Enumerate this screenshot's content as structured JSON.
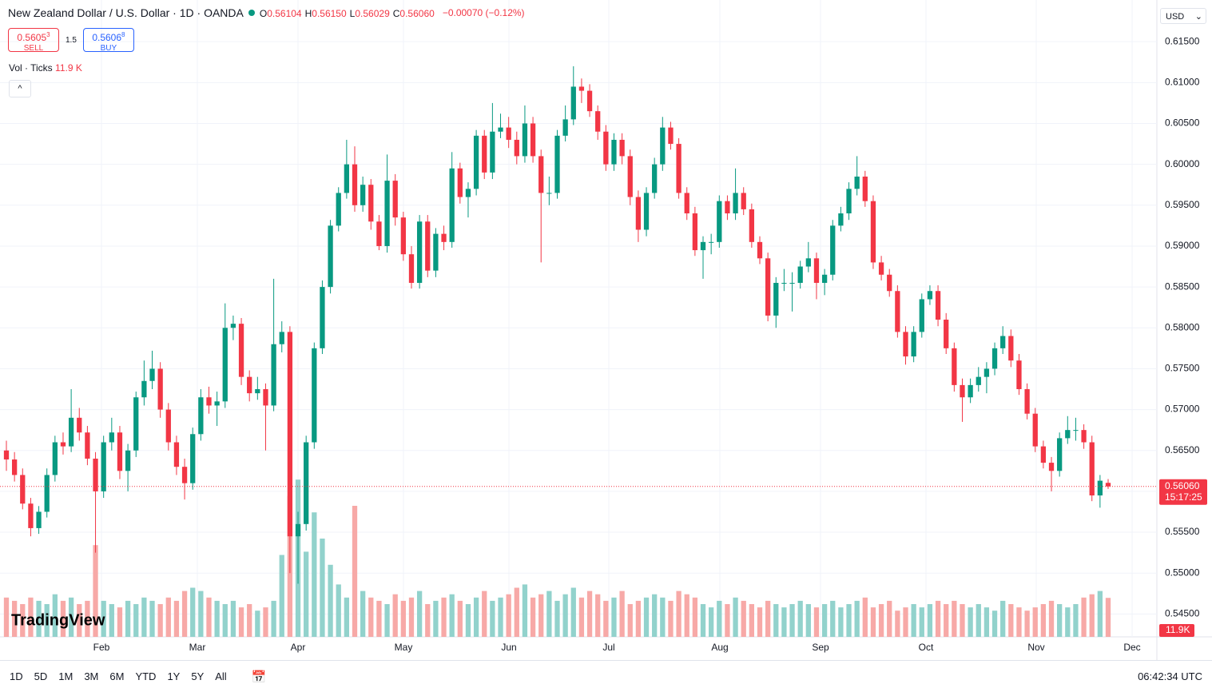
{
  "header": {
    "symbol": "New Zealand Dollar / U.S. Dollar · 1D · OANDA",
    "ohlc": [
      {
        "key": "O",
        "text": "0.56104"
      },
      {
        "key": "H",
        "text": "0.56150"
      },
      {
        "key": "L",
        "text": "0.56029"
      },
      {
        "key": "C",
        "text": "0.56060"
      }
    ],
    "change": "−0.00070 (−0.12%)",
    "currency": "USD"
  },
  "trade": {
    "sell_price": "0.5605",
    "sell_pip": "3",
    "sell": "SELL",
    "spread": "1.5",
    "buy_price": "0.5606",
    "buy_pip": "8",
    "buy": "BUY"
  },
  "volume_legend": {
    "name": "Vol · Ticks",
    "value": "11.9 K",
    "tag": "11.9K"
  },
  "logo": "TradingView",
  "toolbar": {
    "ranges": [
      "1D",
      "5D",
      "1M",
      "3M",
      "6M",
      "YTD",
      "1Y",
      "5Y",
      "All"
    ],
    "clock": "06:42:34 UTC"
  },
  "chart_data": {
    "type": "candlestick",
    "up_color": "#089981",
    "down_color": "#f23645",
    "up_volume_color": "#92d2cc",
    "down_volume_color": "#f7a9a7",
    "grid": true,
    "ylim": [
      0.5422,
      0.6201
    ],
    "yticks": [
      {
        "value": 0.545,
        "label": "0.54500"
      },
      {
        "value": 0.55,
        "label": "0.55000"
      },
      {
        "value": 0.555,
        "label": "0.55500"
      },
      {
        "value": 0.56,
        "label": "0.56000"
      },
      {
        "value": 0.565,
        "label": "0.56500"
      },
      {
        "value": 0.57,
        "label": "0.57000"
      },
      {
        "value": 0.575,
        "label": "0.57500"
      },
      {
        "value": 0.58,
        "label": "0.58000"
      },
      {
        "value": 0.585,
        "label": "0.58500"
      },
      {
        "value": 0.59,
        "label": "0.59000"
      },
      {
        "value": 0.595,
        "label": "0.59500"
      },
      {
        "value": 0.6,
        "label": "0.60000"
      },
      {
        "value": 0.605,
        "label": "0.60500"
      },
      {
        "value": 0.61,
        "label": "0.61000"
      },
      {
        "value": 0.615,
        "label": "0.61500"
      }
    ],
    "time_labels": [
      "Feb",
      "Mar",
      "Apr",
      "May",
      "Jun",
      "Jul",
      "Aug",
      "Sep",
      "Oct",
      "Nov",
      "Dec"
    ],
    "last_price": {
      "value": 0.5606,
      "label": "0.56060"
    },
    "countdown": "15:17:25",
    "ohlc": [
      [
        0.565,
        0.5662,
        0.5625,
        0.5639
      ],
      [
        0.5639,
        0.5648,
        0.5612,
        0.562
      ],
      [
        0.562,
        0.5628,
        0.5578,
        0.5585
      ],
      [
        0.5585,
        0.5592,
        0.5545,
        0.5555
      ],
      [
        0.5555,
        0.5582,
        0.5548,
        0.5575
      ],
      [
        0.5575,
        0.5628,
        0.5568,
        0.562
      ],
      [
        0.562,
        0.5668,
        0.5612,
        0.566
      ],
      [
        0.566,
        0.5672,
        0.5645,
        0.5655
      ],
      [
        0.5655,
        0.5725,
        0.5648,
        0.569
      ],
      [
        0.569,
        0.5702,
        0.5662,
        0.5672
      ],
      [
        0.5672,
        0.568,
        0.5632,
        0.564
      ],
      [
        0.564,
        0.5648,
        0.5525,
        0.56
      ],
      [
        0.56,
        0.5668,
        0.5592,
        0.566
      ],
      [
        0.566,
        0.569,
        0.565,
        0.5672
      ],
      [
        0.5672,
        0.568,
        0.5615,
        0.5625
      ],
      [
        0.5625,
        0.5658,
        0.56,
        0.565
      ],
      [
        0.565,
        0.5722,
        0.5642,
        0.5715
      ],
      [
        0.5715,
        0.576,
        0.5705,
        0.5735
      ],
      [
        0.5735,
        0.5772,
        0.5725,
        0.575
      ],
      [
        0.575,
        0.5758,
        0.569,
        0.57
      ],
      [
        0.57,
        0.5708,
        0.565,
        0.566
      ],
      [
        0.566,
        0.5668,
        0.562,
        0.563
      ],
      [
        0.563,
        0.564,
        0.559,
        0.561
      ],
      [
        0.561,
        0.5678,
        0.5602,
        0.567
      ],
      [
        0.567,
        0.5725,
        0.5662,
        0.5715
      ],
      [
        0.5715,
        0.5728,
        0.5695,
        0.5705
      ],
      [
        0.5705,
        0.5722,
        0.568,
        0.571
      ],
      [
        0.571,
        0.583,
        0.5702,
        0.58
      ],
      [
        0.58,
        0.5815,
        0.5785,
        0.5805
      ],
      [
        0.5805,
        0.5812,
        0.573,
        0.574
      ],
      [
        0.574,
        0.5748,
        0.571,
        0.572
      ],
      [
        0.572,
        0.574,
        0.5712,
        0.5725
      ],
      [
        0.5725,
        0.5732,
        0.565,
        0.5705
      ],
      [
        0.5705,
        0.586,
        0.5698,
        0.578
      ],
      [
        0.578,
        0.5808,
        0.577,
        0.5795
      ],
      [
        0.5795,
        0.5802,
        0.55,
        0.5545
      ],
      [
        0.5545,
        0.5575,
        0.5487,
        0.556
      ],
      [
        0.556,
        0.5668,
        0.5552,
        0.566
      ],
      [
        0.566,
        0.5782,
        0.5652,
        0.5775
      ],
      [
        0.5775,
        0.5858,
        0.5768,
        0.585
      ],
      [
        0.585,
        0.5932,
        0.5842,
        0.5925
      ],
      [
        0.5925,
        0.5972,
        0.5918,
        0.5965
      ],
      [
        0.5965,
        0.603,
        0.5958,
        0.6
      ],
      [
        0.6,
        0.6022,
        0.5942,
        0.595
      ],
      [
        0.595,
        0.5985,
        0.5942,
        0.5975
      ],
      [
        0.5975,
        0.5982,
        0.592,
        0.593
      ],
      [
        0.593,
        0.5938,
        0.5895,
        0.59
      ],
      [
        0.59,
        0.6012,
        0.5892,
        0.598
      ],
      [
        0.598,
        0.5988,
        0.5925,
        0.5935
      ],
      [
        0.5935,
        0.5942,
        0.5882,
        0.589
      ],
      [
        0.589,
        0.59,
        0.5848,
        0.5855
      ],
      [
        0.5855,
        0.5938,
        0.5848,
        0.593
      ],
      [
        0.593,
        0.5938,
        0.5862,
        0.587
      ],
      [
        0.587,
        0.5922,
        0.5862,
        0.5915
      ],
      [
        0.5915,
        0.5925,
        0.5895,
        0.5905
      ],
      [
        0.5905,
        0.6015,
        0.5898,
        0.5995
      ],
      [
        0.5995,
        0.6002,
        0.5952,
        0.596
      ],
      [
        0.596,
        0.5978,
        0.5935,
        0.597
      ],
      [
        0.597,
        0.6042,
        0.5962,
        0.6035
      ],
      [
        0.6035,
        0.6042,
        0.5982,
        0.599
      ],
      [
        0.599,
        0.6075,
        0.5982,
        0.604
      ],
      [
        0.604,
        0.6062,
        0.6032,
        0.6045
      ],
      [
        0.6045,
        0.6058,
        0.602,
        0.603
      ],
      [
        0.603,
        0.604,
        0.6,
        0.601
      ],
      [
        0.601,
        0.6072,
        0.6002,
        0.605
      ],
      [
        0.605,
        0.6058,
        0.6002,
        0.601
      ],
      [
        0.601,
        0.6018,
        0.588,
        0.5965
      ],
      [
        0.5965,
        0.5985,
        0.595,
        0.5965
      ],
      [
        0.5965,
        0.6042,
        0.5958,
        0.6035
      ],
      [
        0.6035,
        0.6072,
        0.6028,
        0.6055
      ],
      [
        0.6055,
        0.612,
        0.6048,
        0.6095
      ],
      [
        0.6095,
        0.6105,
        0.6075,
        0.609
      ],
      [
        0.609,
        0.6098,
        0.6058,
        0.6065
      ],
      [
        0.6065,
        0.6072,
        0.603,
        0.604
      ],
      [
        0.604,
        0.6048,
        0.5992,
        0.6
      ],
      [
        0.6,
        0.6038,
        0.5992,
        0.603
      ],
      [
        0.603,
        0.6038,
        0.6,
        0.601
      ],
      [
        0.601,
        0.6018,
        0.595,
        0.596
      ],
      [
        0.596,
        0.5968,
        0.5905,
        0.592
      ],
      [
        0.592,
        0.5972,
        0.5912,
        0.5965
      ],
      [
        0.5965,
        0.6008,
        0.5958,
        0.6
      ],
      [
        0.6,
        0.6058,
        0.5992,
        0.6045
      ],
      [
        0.6045,
        0.6052,
        0.6018,
        0.6025
      ],
      [
        0.6025,
        0.6032,
        0.5958,
        0.5965
      ],
      [
        0.5965,
        0.5972,
        0.5932,
        0.594
      ],
      [
        0.594,
        0.5948,
        0.5888,
        0.5895
      ],
      [
        0.5895,
        0.5912,
        0.586,
        0.5905
      ],
      [
        0.5905,
        0.5915,
        0.589,
        0.5905
      ],
      [
        0.5905,
        0.5962,
        0.5898,
        0.5955
      ],
      [
        0.5955,
        0.5962,
        0.5932,
        0.594
      ],
      [
        0.594,
        0.5995,
        0.5932,
        0.5965
      ],
      [
        0.5965,
        0.5972,
        0.5938,
        0.5945
      ],
      [
        0.5945,
        0.5952,
        0.5898,
        0.5905
      ],
      [
        0.5905,
        0.5912,
        0.5878,
        0.5885
      ],
      [
        0.5885,
        0.5892,
        0.5808,
        0.5815
      ],
      [
        0.5815,
        0.5862,
        0.58,
        0.5855
      ],
      [
        0.5855,
        0.5872,
        0.5845,
        0.5855
      ],
      [
        0.5855,
        0.5868,
        0.582,
        0.5855
      ],
      [
        0.5855,
        0.5882,
        0.5848,
        0.5875
      ],
      [
        0.5875,
        0.5905,
        0.5868,
        0.5885
      ],
      [
        0.5885,
        0.5892,
        0.5835,
        0.5855
      ],
      [
        0.5855,
        0.5872,
        0.584,
        0.5865
      ],
      [
        0.5865,
        0.5932,
        0.5858,
        0.5925
      ],
      [
        0.5925,
        0.5948,
        0.5918,
        0.594
      ],
      [
        0.594,
        0.5978,
        0.5932,
        0.597
      ],
      [
        0.597,
        0.601,
        0.5962,
        0.5985
      ],
      [
        0.5985,
        0.5992,
        0.5948,
        0.5955
      ],
      [
        0.5955,
        0.5962,
        0.5872,
        0.588
      ],
      [
        0.588,
        0.5888,
        0.5858,
        0.5865
      ],
      [
        0.5865,
        0.5872,
        0.5838,
        0.5845
      ],
      [
        0.5845,
        0.5852,
        0.5788,
        0.5795
      ],
      [
        0.5795,
        0.5802,
        0.5755,
        0.5765
      ],
      [
        0.5765,
        0.5802,
        0.5758,
        0.5795
      ],
      [
        0.5795,
        0.5842,
        0.5788,
        0.5835
      ],
      [
        0.5835,
        0.5852,
        0.5828,
        0.5845
      ],
      [
        0.5845,
        0.5852,
        0.5802,
        0.581
      ],
      [
        0.581,
        0.5818,
        0.5768,
        0.5775
      ],
      [
        0.5775,
        0.5782,
        0.5722,
        0.573
      ],
      [
        0.573,
        0.5738,
        0.5685,
        0.5715
      ],
      [
        0.5715,
        0.5738,
        0.5708,
        0.573
      ],
      [
        0.573,
        0.5752,
        0.5722,
        0.574
      ],
      [
        0.574,
        0.5758,
        0.572,
        0.575
      ],
      [
        0.575,
        0.5782,
        0.5742,
        0.5775
      ],
      [
        0.5775,
        0.5802,
        0.5768,
        0.579
      ],
      [
        0.579,
        0.5798,
        0.5752,
        0.576
      ],
      [
        0.576,
        0.5768,
        0.5718,
        0.5725
      ],
      [
        0.5725,
        0.5732,
        0.5688,
        0.5695
      ],
      [
        0.5695,
        0.5702,
        0.5648,
        0.5655
      ],
      [
        0.5655,
        0.5662,
        0.5628,
        0.5635
      ],
      [
        0.5635,
        0.5642,
        0.56,
        0.5625
      ],
      [
        0.5625,
        0.5672,
        0.5618,
        0.5665
      ],
      [
        0.5665,
        0.5692,
        0.5658,
        0.5675
      ],
      [
        0.5675,
        0.569,
        0.5662,
        0.5675
      ],
      [
        0.5675,
        0.5682,
        0.5652,
        0.566
      ],
      [
        0.566,
        0.5668,
        0.5588,
        0.5595
      ],
      [
        0.5595,
        0.562,
        0.558,
        0.5613
      ],
      [
        0.56104,
        0.5615,
        0.56029,
        0.5606
      ]
    ],
    "volume": [
      12,
      11,
      10,
      12,
      11,
      10,
      13,
      11,
      12,
      10,
      11,
      28,
      11,
      10,
      9,
      11,
      10,
      12,
      11,
      10,
      12,
      11,
      14,
      15,
      14,
      12,
      11,
      10,
      11,
      9,
      10,
      8,
      9,
      11,
      25,
      43,
      48,
      26,
      38,
      30,
      22,
      16,
      12,
      40,
      14,
      12,
      11,
      10,
      13,
      11,
      12,
      14,
      10,
      11,
      12,
      13,
      11,
      10,
      12,
      14,
      11,
      12,
      13,
      15,
      16,
      12,
      13,
      14,
      11,
      13,
      15,
      12,
      14,
      13,
      11,
      12,
      14,
      10,
      11,
      12,
      13,
      12,
      11,
      14,
      13,
      12,
      10,
      9,
      11,
      10,
      12,
      11,
      10,
      9,
      11,
      10,
      9,
      10,
      11,
      10,
      9,
      10,
      11,
      9,
      10,
      11,
      12,
      9,
      10,
      11,
      8,
      9,
      10,
      9,
      10,
      11,
      10,
      11,
      10,
      9,
      10,
      9,
      8,
      11,
      10,
      9,
      8,
      9,
      10,
      11,
      10,
      9,
      10,
      12,
      13,
      14,
      11.9
    ]
  }
}
